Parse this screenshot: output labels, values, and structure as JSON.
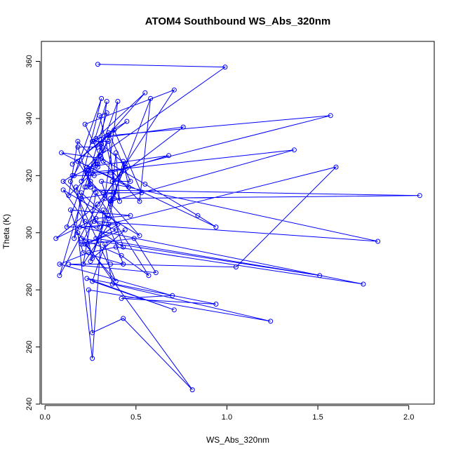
{
  "chart_data": {
    "type": "line",
    "title": "ATOM4 Southbound WS_Abs_320nm",
    "xlabel": "WS_Abs_320nm",
    "ylabel": "Theta (K)",
    "xlim": [
      -0.02,
      2.14
    ],
    "ylim": [
      240,
      367
    ],
    "xticks": [
      0.0,
      0.5,
      1.0,
      1.5,
      2.0
    ],
    "xtick_labels": [
      "0.0",
      "0.5",
      "1.0",
      "1.5",
      "2.0"
    ],
    "yticks": [
      240,
      260,
      280,
      300,
      320,
      340,
      360
    ],
    "ytick_labels": [
      "240",
      "260",
      "280",
      "300",
      "320",
      "340",
      "360"
    ],
    "grid": false,
    "legend": "none",
    "color": "#0000ff",
    "series": [
      {
        "marker": "open-circle",
        "x": [
          0.29,
          0.99,
          0.3,
          0.22,
          0.71,
          0.33,
          0.4,
          0.23,
          0.25,
          0.18,
          0.29,
          0.55,
          0.28,
          0.76,
          0.37,
          0.47,
          0.35,
          0.38,
          0.2,
          0.1,
          0.15,
          0.27,
          1.57,
          0.35,
          0.29,
          0.24,
          0.32,
          0.23,
          0.68,
          0.36,
          0.26,
          0.13,
          0.18,
          0.28,
          0.23,
          1.37,
          0.36,
          0.44,
          0.29,
          0.08,
          0.22,
          0.34,
          0.3,
          0.41,
          0.39,
          0.36,
          0.58,
          0.52,
          0.32,
          0.31,
          0.44,
          0.25,
          0.36,
          2.06,
          0.27,
          0.16,
          0.2,
          0.35,
          0.38,
          0.43,
          0.46,
          0.09,
          0.31,
          0.55,
          0.84,
          0.94,
          0.18,
          0.25,
          0.52,
          0.1,
          0.22,
          0.43,
          0.31,
          1.83,
          0.27,
          0.39,
          0.23,
          0.49,
          0.61,
          0.13,
          0.36,
          1.05,
          1.6,
          0.35,
          0.21,
          0.28,
          0.57,
          0.42,
          0.2,
          1.51,
          0.28,
          0.4,
          0.19,
          1.75,
          0.39,
          0.24,
          0.08,
          0.7,
          0.42,
          0.94,
          0.23,
          0.71,
          0.26,
          0.33,
          0.37,
          1.24,
          0.24,
          0.26,
          0.43,
          0.81,
          0.18,
          0.26,
          0.32,
          0.43,
          0.21,
          0.14,
          0.47,
          0.28,
          0.06,
          0.33,
          0.2,
          0.44,
          0.26,
          0.17,
          0.3,
          0.12,
          0.23,
          0.25,
          0.32,
          0.53,
          0.38,
          0.15,
          0.45,
          0.27,
          0.34,
          0.29,
          0.16,
          0.31,
          0.2,
          0.35,
          0.26,
          0.14,
          0.39,
          0.22
        ],
        "y": [
          359,
          358,
          327,
          338,
          350,
          313,
          346,
          316,
          316,
          330,
          330,
          349,
          333,
          337,
          318,
          318,
          335,
          314,
          312,
          318,
          320,
          320,
          341,
          334,
          323,
          322,
          329,
          323,
          327,
          321,
          321,
          313,
          332,
          325,
          321,
          329,
          311,
          323,
          310,
          285,
          316,
          342,
          341,
          311,
          328,
          310,
          347,
          311,
          325,
          331,
          324,
          290,
          312,
          313,
          315,
          298,
          314,
          305,
          312,
          325,
          316,
          328,
          326,
          317,
          306,
          302,
          325,
          318,
          299,
          315,
          304,
          295,
          318,
          297,
          304,
          301,
          296,
          298,
          286,
          289,
          289,
          288,
          323,
          303,
          289,
          314,
          285,
          292,
          298,
          285,
          298,
          303,
          302,
          282,
          295,
          293,
          289,
          278,
          277,
          275,
          284,
          273,
          283,
          296,
          282,
          269,
          280,
          265,
          270,
          245,
          300,
          256,
          308,
          289,
          293,
          308,
          306,
          305,
          298,
          312,
          296,
          301,
          291,
          316,
          302,
          302,
          322,
          317,
          314,
          314,
          336,
          324,
          339,
          332,
          346,
          324,
          320,
          347,
          318,
          332,
          332,
          318,
          283,
          296
        ]
      }
    ]
  }
}
